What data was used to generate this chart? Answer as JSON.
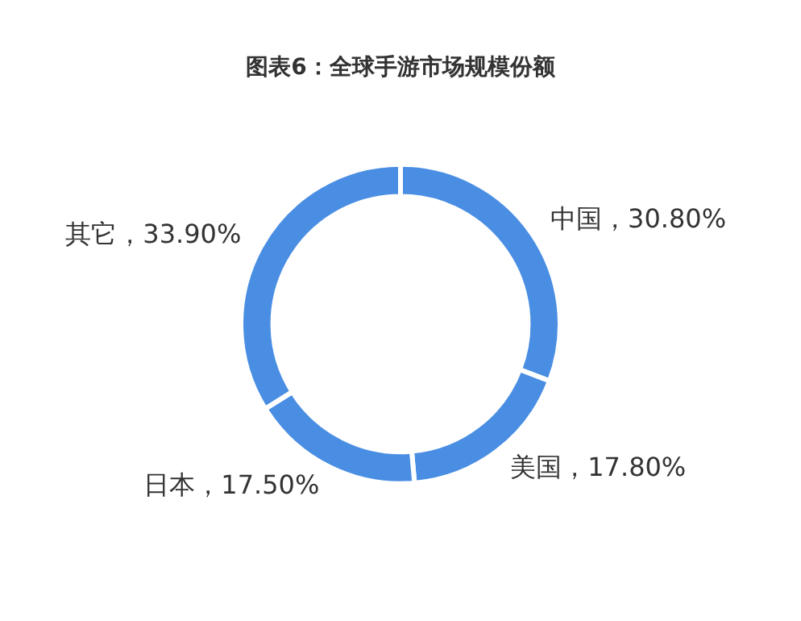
{
  "chart_data": {
    "type": "donut",
    "title": "图表6：全球手游市场规模份额",
    "categories": [
      "中国",
      "美国",
      "日本",
      "其它"
    ],
    "values": [
      30.8,
      17.8,
      17.5,
      33.9
    ],
    "colors": [
      "#4a8ee3",
      "#4a8ee3",
      "#4a8ee3",
      "#4a8ee3"
    ],
    "value_labels": [
      "，30.80%",
      "，17.80%",
      "，17.50%",
      "，33.90%"
    ],
    "legend": false
  }
}
